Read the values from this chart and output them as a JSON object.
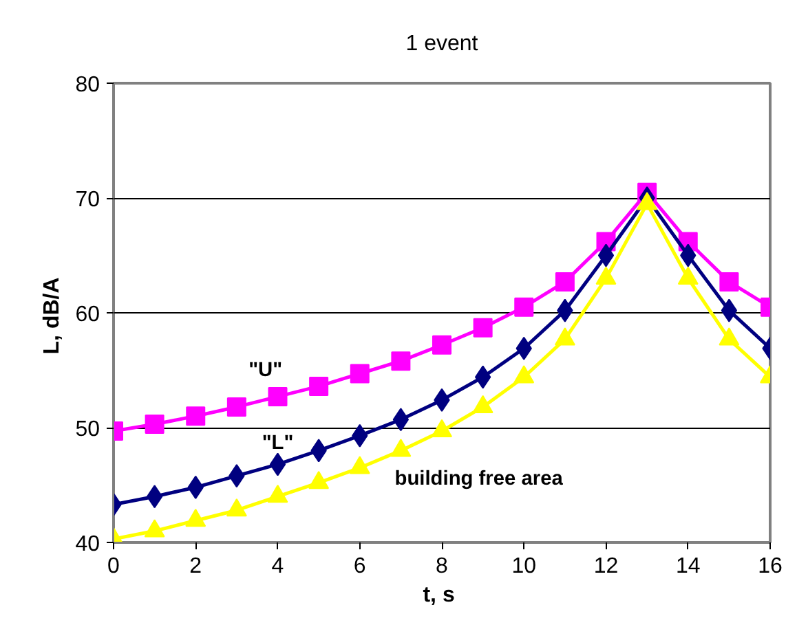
{
  "chart_data": {
    "type": "line",
    "title": "1 event",
    "xlabel": "t,  s",
    "ylabel": "L,  dB/A",
    "x": [
      0,
      1,
      2,
      3,
      4,
      5,
      6,
      7,
      8,
      9,
      10,
      11,
      12,
      13,
      14,
      15,
      16
    ],
    "series": [
      {
        "name": "\"U\"",
        "color": "#ff00ff",
        "marker": "square",
        "values": [
          49.7,
          50.3,
          51.0,
          51.8,
          52.7,
          53.6,
          54.7,
          55.8,
          57.2,
          58.7,
          60.5,
          62.7,
          66.2,
          70.5,
          66.2,
          62.7,
          60.5
        ]
      },
      {
        "name": "\"L\"",
        "color": "#000080",
        "marker": "diamond",
        "values": [
          43.3,
          44.0,
          44.8,
          45.8,
          46.8,
          48.0,
          49.3,
          50.7,
          52.4,
          54.4,
          56.9,
          60.2,
          65.0,
          70.0,
          65.0,
          60.2,
          56.9
        ]
      },
      {
        "name": "building free area",
        "color": "#ffff00",
        "marker": "triangle",
        "values": [
          40.3,
          41.0,
          41.9,
          42.8,
          44.0,
          45.2,
          46.5,
          48.0,
          49.7,
          51.8,
          54.4,
          57.7,
          63.0,
          69.5,
          63.0,
          57.7,
          54.4
        ]
      }
    ],
    "xlim": [
      0,
      16
    ],
    "ylim": [
      40,
      80
    ],
    "xticks": [
      0,
      2,
      4,
      6,
      8,
      10,
      12,
      14,
      16
    ],
    "yticks": [
      40,
      50,
      60,
      70,
      80
    ],
    "grid": "y"
  }
}
